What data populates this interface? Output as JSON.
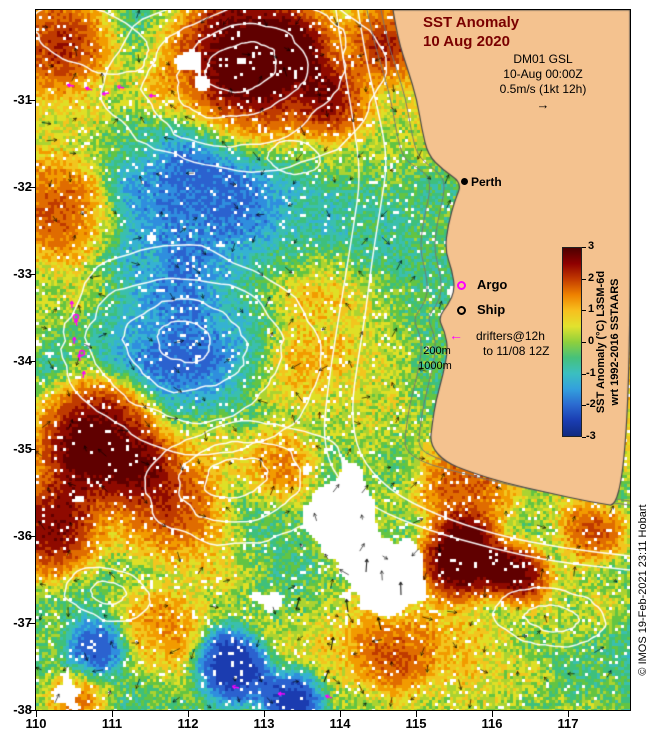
{
  "title": {
    "line1": "SST Anomaly",
    "line2": "10 Aug 2020"
  },
  "info": {
    "product": "DM01 GSL",
    "datetime": "10-Aug 00:00Z",
    "scale": "0.5m/s (1kt 12h)",
    "arrow": "→"
  },
  "city": {
    "name": "Perth"
  },
  "legend": {
    "argo": "Argo",
    "ship": "Ship",
    "drifters_arrow": "←",
    "drifters_line1": "drifters@12h",
    "drifters_line2": "to 11/08 12Z",
    "depth1": "200m",
    "depth2": "1000m"
  },
  "axes": {
    "x_ticks": [
      "110",
      "111",
      "112",
      "113",
      "114",
      "115",
      "116",
      "117"
    ],
    "y_ticks": [
      "-31",
      "-32",
      "-33",
      "-34",
      "-35",
      "-36",
      "-37",
      "-38"
    ]
  },
  "colorbar": {
    "ticks": [
      "3",
      "2",
      "1",
      "0",
      "-1",
      "-2",
      "-3"
    ],
    "label_line1": "SST Anomaly (°C) L3SM-6d",
    "label_line2": "wrt 1992-2016 SSTAARS",
    "gradient": [
      "#4d0000",
      "#8f0000",
      "#c33b00",
      "#ef8200",
      "#f7c01e",
      "#e2e22e",
      "#8fd03c",
      "#46c17a",
      "#3bbfc0",
      "#33a0dd",
      "#2b6ad0",
      "#1a3db2",
      "#102a80"
    ]
  },
  "credit": "© IMOS 19-Feb-2021 23:11 Hobart",
  "colors": {
    "land": "#f4c28f",
    "title": "#7a0000",
    "magenta": "#ff00ff"
  }
}
